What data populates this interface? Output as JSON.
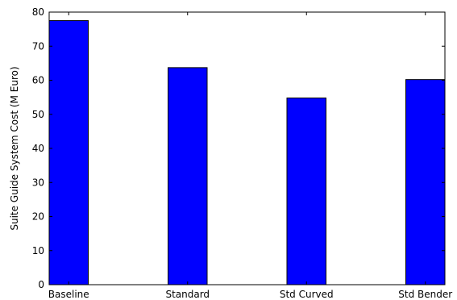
{
  "chart_data": {
    "type": "bar",
    "categories": [
      "Baseline",
      "Standard",
      "Std Curved",
      "Std Bender"
    ],
    "values": [
      77.5,
      63.7,
      54.8,
      60.2
    ],
    "xlabel": "",
    "ylabel": "Suite Guide System Cost (M Euro)",
    "ylim": [
      0,
      80
    ],
    "yticks": [
      "0",
      "10",
      "20",
      "30",
      "40",
      "50",
      "60",
      "70",
      "80"
    ],
    "grid": false,
    "legend": "none",
    "bar_color": "#0000ff",
    "edge_color": "#000000"
  }
}
